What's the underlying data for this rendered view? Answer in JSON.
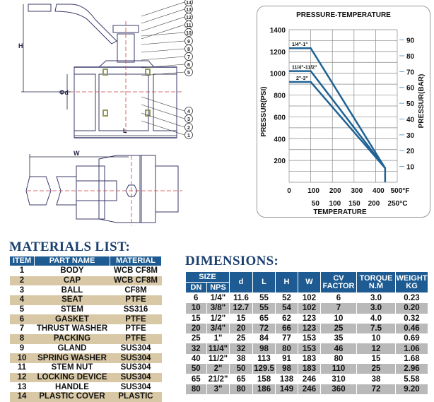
{
  "drawing": {
    "dimension_labels": {
      "height": "H",
      "diameter": "Φd",
      "length": "L",
      "width": "W"
    },
    "callouts": [
      "1",
      "2",
      "3",
      "4",
      "5",
      "6",
      "7",
      "8",
      "9",
      "10",
      "11",
      "12",
      "13",
      "14"
    ]
  },
  "materials": {
    "title": "MATERIALS LIST:",
    "headers": [
      "ITEM",
      "PART NAME",
      "MATERIAL"
    ],
    "rows": [
      [
        "1",
        "BODY",
        "WCB   CF8M"
      ],
      [
        "2",
        "CAP",
        "WCB   CF8M"
      ],
      [
        "3",
        "BALL",
        "CF8M"
      ],
      [
        "4",
        "SEAT",
        "PTFE"
      ],
      [
        "5",
        "STEM",
        "SS316"
      ],
      [
        "6",
        "GASKET",
        "PTFE"
      ],
      [
        "7",
        "THRUST WASHER",
        "PTFE"
      ],
      [
        "8",
        "PACKING",
        "PTFE"
      ],
      [
        "9",
        "GLAND",
        "SUS304"
      ],
      [
        "10",
        "SPRING WASHER",
        "SUS304"
      ],
      [
        "11",
        "STEM NUT",
        "SUS304"
      ],
      [
        "12",
        "LOCKING DEVICE",
        "SUS304"
      ],
      [
        "13",
        "HANDLE",
        "SUS304"
      ],
      [
        "14",
        "PLASTIC COVER",
        "PLASTIC"
      ]
    ]
  },
  "dimensions": {
    "title": "DIMENSIONS:",
    "headers": {
      "size": "SIZE",
      "dn": "DN",
      "nps": "NPS",
      "d": "d",
      "l": "L",
      "h": "H",
      "w": "W",
      "cv": "CV FACTOR",
      "torque": "TORQUE N.M",
      "weight": "WEIGHT KG"
    },
    "rows": [
      [
        "6",
        "1/4\"",
        "11.6",
        "55",
        "52",
        "102",
        "6",
        "3.0",
        "0.23"
      ],
      [
        "10",
        "3/8\"",
        "12.7",
        "55",
        "54",
        "102",
        "7",
        "3.0",
        "0.20"
      ],
      [
        "15",
        "1/2\"",
        "15",
        "65",
        "62",
        "123",
        "10",
        "4.0",
        "0.32"
      ],
      [
        "20",
        "3/4\"",
        "20",
        "72",
        "66",
        "123",
        "25",
        "7.5",
        "0.46"
      ],
      [
        "25",
        "1\"",
        "25",
        "84",
        "77",
        "153",
        "35",
        "10",
        "0.69"
      ],
      [
        "32",
        "11/4\"",
        "32",
        "98",
        "80",
        "153",
        "46",
        "12",
        "1.06"
      ],
      [
        "40",
        "11/2\"",
        "38",
        "113",
        "91",
        "183",
        "80",
        "15",
        "1.68"
      ],
      [
        "50",
        "2\"",
        "50",
        "129.5",
        "98",
        "183",
        "110",
        "25",
        "2.96"
      ],
      [
        "65",
        "21/2\"",
        "65",
        "158",
        "138",
        "246",
        "310",
        "38",
        "5.58"
      ],
      [
        "80",
        "3\"",
        "80",
        "186",
        "149",
        "246",
        "360",
        "72",
        "9.20"
      ]
    ]
  },
  "colors": {
    "header_blue": "#1d5b92",
    "title_navy": "#1b3f6e",
    "line_blue": "#1f6394",
    "row_tan": "#d8c8a6",
    "row_gray": "#b9b9b9"
  },
  "chart_data": {
    "type": "line",
    "title": "PRESSURE-TEMPERATURE",
    "xlabel": "TEMPERATURE",
    "ylabel": "PRESSUR(PSI)",
    "y2label": "PRESSUR(BAR)",
    "xlim": [
      0,
      500
    ],
    "ylim": [
      0,
      1400
    ],
    "y2lim": [
      0,
      96.5
    ],
    "x_ticks_f": [
      "0",
      "100",
      "200",
      "300",
      "400",
      "500°F"
    ],
    "x_ticks_c": [
      "50",
      "100",
      "150",
      "200",
      "250°C"
    ],
    "y_ticks": [
      "200",
      "400",
      "600",
      "800",
      "1000",
      "1200",
      "1400"
    ],
    "y2_ticks": [
      "10",
      "20",
      "30",
      "40",
      "50",
      "60",
      "70",
      "80",
      "90"
    ],
    "grid": true,
    "series": [
      {
        "name": "1/4\"-1\"",
        "x": [
          0,
          100,
          444,
          444
        ],
        "y": [
          1230,
          1230,
          130,
          0
        ]
      },
      {
        "name": "11/4\"-11/2\"",
        "x": [
          0,
          100,
          444
        ],
        "y": [
          1020,
          1020,
          130
        ]
      },
      {
        "name": "2\"-3\"",
        "x": [
          0,
          100,
          444
        ],
        "y": [
          920,
          920,
          130
        ]
      }
    ]
  }
}
